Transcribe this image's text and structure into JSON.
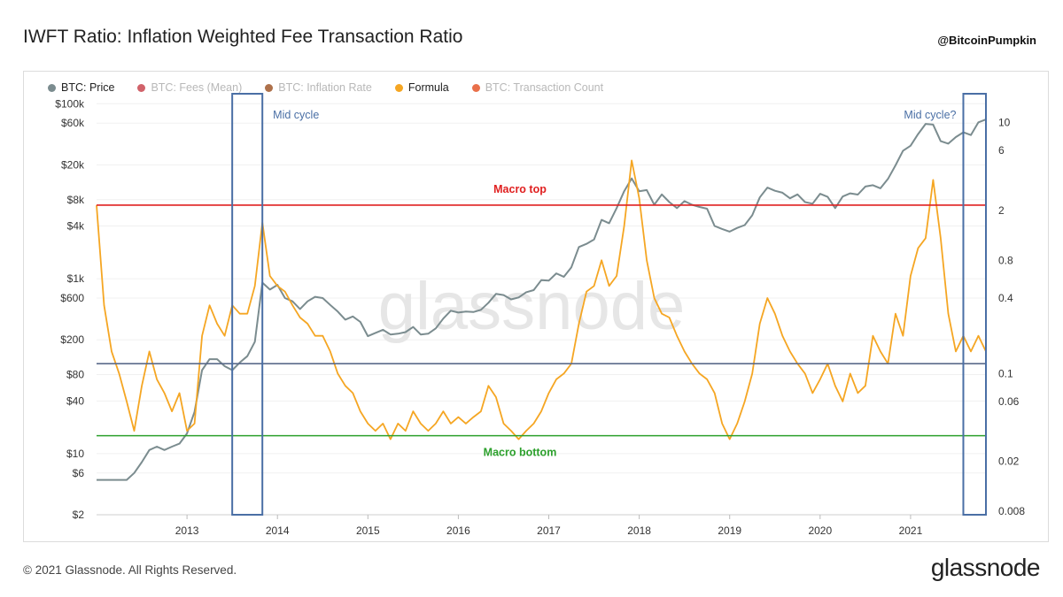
{
  "header": {
    "title": "IWFT Ratio: Inflation Weighted Fee Transaction Ratio",
    "handle": "@BitcoinPumpkin"
  },
  "legend": [
    {
      "label": "BTC: Price",
      "color": "#7b8c8f",
      "active": true
    },
    {
      "label": "BTC: Fees (Mean)",
      "color": "#c94650",
      "active": false
    },
    {
      "label": "BTC: Inflation Rate",
      "color": "#a0582b",
      "active": false
    },
    {
      "label": "Formula",
      "color": "#f5a623",
      "active": true
    },
    {
      "label": "BTC: Transaction Count",
      "color": "#e5572a",
      "active": false
    }
  ],
  "watermark": "glassnode",
  "footer": {
    "copyright": "© 2021 Glassnode. All Rights Reserved.",
    "brand": "glassnode"
  },
  "chart_data": {
    "type": "line",
    "x_range": [
      "2012-01",
      "2021-11"
    ],
    "x_ticks": [
      "2013",
      "2014",
      "2015",
      "2016",
      "2017",
      "2018",
      "2019",
      "2020",
      "2021"
    ],
    "left_axis": {
      "scale": "log",
      "range": [
        2,
        130000
      ],
      "tick_values": [
        100000,
        60000,
        20000,
        8000,
        4000,
        1000,
        600,
        200,
        80,
        40,
        10,
        6,
        2
      ],
      "tick_labels": [
        "$100k",
        "$60k",
        "$20k",
        "$8k",
        "$4k",
        "$1k",
        "$600",
        "$200",
        "$80",
        "$40",
        "$10",
        "$6",
        "$2"
      ]
    },
    "right_axis": {
      "scale": "log",
      "range": [
        0.0075,
        17
      ],
      "tick_values": [
        10,
        6,
        2,
        0.8,
        0.4,
        0.1,
        0.06,
        0.02,
        0.008
      ],
      "tick_labels": [
        "10",
        "6",
        "2",
        "0.8",
        "0.4",
        "0.1",
        "0.06",
        "0.02",
        "0.008"
      ]
    },
    "series": [
      {
        "name": "BTC: Price",
        "axis": "left",
        "color": "#7b8c8f",
        "points": [
          [
            "2012-01",
            5
          ],
          [
            "2012-02",
            5
          ],
          [
            "2012-03",
            5
          ],
          [
            "2012-04",
            5
          ],
          [
            "2012-05",
            5
          ],
          [
            "2012-06",
            6
          ],
          [
            "2012-07",
            8
          ],
          [
            "2012-08",
            11
          ],
          [
            "2012-09",
            12
          ],
          [
            "2012-10",
            11
          ],
          [
            "2012-11",
            12
          ],
          [
            "2012-12",
            13
          ],
          [
            "2013-01",
            17
          ],
          [
            "2013-02",
            30
          ],
          [
            "2013-03",
            90
          ],
          [
            "2013-04",
            120
          ],
          [
            "2013-05",
            120
          ],
          [
            "2013-06",
            100
          ],
          [
            "2013-07",
            90
          ],
          [
            "2013-08",
            110
          ],
          [
            "2013-09",
            130
          ],
          [
            "2013-10",
            190
          ],
          [
            "2013-11",
            900
          ],
          [
            "2013-12",
            750
          ],
          [
            "2014-01",
            850
          ],
          [
            "2014-02",
            600
          ],
          [
            "2014-03",
            550
          ],
          [
            "2014-04",
            450
          ],
          [
            "2014-05",
            550
          ],
          [
            "2014-06",
            620
          ],
          [
            "2014-07",
            600
          ],
          [
            "2014-08",
            500
          ],
          [
            "2014-09",
            420
          ],
          [
            "2014-10",
            340
          ],
          [
            "2014-11",
            370
          ],
          [
            "2014-12",
            320
          ],
          [
            "2015-01",
            220
          ],
          [
            "2015-02",
            240
          ],
          [
            "2015-03",
            260
          ],
          [
            "2015-04",
            230
          ],
          [
            "2015-05",
            235
          ],
          [
            "2015-06",
            245
          ],
          [
            "2015-07",
            280
          ],
          [
            "2015-08",
            230
          ],
          [
            "2015-09",
            235
          ],
          [
            "2015-10",
            270
          ],
          [
            "2015-11",
            350
          ],
          [
            "2015-12",
            430
          ],
          [
            "2016-01",
            410
          ],
          [
            "2016-02",
            420
          ],
          [
            "2016-03",
            415
          ],
          [
            "2016-04",
            440
          ],
          [
            "2016-05",
            530
          ],
          [
            "2016-06",
            670
          ],
          [
            "2016-07",
            650
          ],
          [
            "2016-08",
            580
          ],
          [
            "2016-09",
            610
          ],
          [
            "2016-10",
            700
          ],
          [
            "2016-11",
            740
          ],
          [
            "2016-12",
            960
          ],
          [
            "2017-01",
            950
          ],
          [
            "2017-02",
            1150
          ],
          [
            "2017-03",
            1050
          ],
          [
            "2017-04",
            1350
          ],
          [
            "2017-05",
            2300
          ],
          [
            "2017-06",
            2500
          ],
          [
            "2017-07",
            2800
          ],
          [
            "2017-08",
            4700
          ],
          [
            "2017-09",
            4300
          ],
          [
            "2017-10",
            6400
          ],
          [
            "2017-11",
            10000
          ],
          [
            "2017-12",
            14000
          ],
          [
            "2018-01",
            10000
          ],
          [
            "2018-02",
            10300
          ],
          [
            "2018-03",
            7000
          ],
          [
            "2018-04",
            9200
          ],
          [
            "2018-05",
            7500
          ],
          [
            "2018-06",
            6400
          ],
          [
            "2018-07",
            7700
          ],
          [
            "2018-08",
            7000
          ],
          [
            "2018-09",
            6600
          ],
          [
            "2018-10",
            6300
          ],
          [
            "2018-11",
            4000
          ],
          [
            "2018-12",
            3700
          ],
          [
            "2019-01",
            3450
          ],
          [
            "2019-02",
            3800
          ],
          [
            "2019-03",
            4100
          ],
          [
            "2019-04",
            5300
          ],
          [
            "2019-05",
            8500
          ],
          [
            "2019-06",
            11000
          ],
          [
            "2019-07",
            10100
          ],
          [
            "2019-08",
            9600
          ],
          [
            "2019-09",
            8300
          ],
          [
            "2019-10",
            9200
          ],
          [
            "2019-11",
            7500
          ],
          [
            "2019-12",
            7200
          ],
          [
            "2020-01",
            9350
          ],
          [
            "2020-02",
            8600
          ],
          [
            "2020-03",
            6400
          ],
          [
            "2020-04",
            8700
          ],
          [
            "2020-05",
            9450
          ],
          [
            "2020-06",
            9150
          ],
          [
            "2020-07",
            11300
          ],
          [
            "2020-08",
            11700
          ],
          [
            "2020-09",
            10800
          ],
          [
            "2020-10",
            13800
          ],
          [
            "2020-11",
            19700
          ],
          [
            "2020-12",
            29000
          ],
          [
            "2021-01",
            33100
          ],
          [
            "2021-02",
            45000
          ],
          [
            "2021-03",
            58800
          ],
          [
            "2021-04",
            57700
          ],
          [
            "2021-05",
            37300
          ],
          [
            "2021-06",
            35000
          ],
          [
            "2021-07",
            41500
          ],
          [
            "2021-08",
            47100
          ],
          [
            "2021-09",
            43800
          ],
          [
            "2021-10",
            61300
          ],
          [
            "2021-11",
            66000
          ]
        ]
      },
      {
        "name": "Formula",
        "axis": "right",
        "color": "#f5a623",
        "points": [
          [
            "2012-01",
            2.2
          ],
          [
            "2012-02",
            0.35
          ],
          [
            "2012-03",
            0.15
          ],
          [
            "2012-04",
            0.1
          ],
          [
            "2012-05",
            0.06
          ],
          [
            "2012-06",
            0.035
          ],
          [
            "2012-07",
            0.08
          ],
          [
            "2012-08",
            0.15
          ],
          [
            "2012-09",
            0.09
          ],
          [
            "2012-10",
            0.07
          ],
          [
            "2012-11",
            0.05
          ],
          [
            "2012-12",
            0.07
          ],
          [
            "2013-01",
            0.035
          ],
          [
            "2013-02",
            0.04
          ],
          [
            "2013-03",
            0.2
          ],
          [
            "2013-04",
            0.35
          ],
          [
            "2013-05",
            0.25
          ],
          [
            "2013-06",
            0.2
          ],
          [
            "2013-07",
            0.35
          ],
          [
            "2013-08",
            0.3
          ],
          [
            "2013-09",
            0.3
          ],
          [
            "2013-10",
            0.5
          ],
          [
            "2013-11",
            1.6
          ],
          [
            "2013-12",
            0.6
          ],
          [
            "2014-01",
            0.5
          ],
          [
            "2014-02",
            0.45
          ],
          [
            "2014-03",
            0.35
          ],
          [
            "2014-04",
            0.28
          ],
          [
            "2014-05",
            0.25
          ],
          [
            "2014-06",
            0.2
          ],
          [
            "2014-07",
            0.2
          ],
          [
            "2014-08",
            0.15
          ],
          [
            "2014-09",
            0.1
          ],
          [
            "2014-10",
            0.08
          ],
          [
            "2014-11",
            0.07
          ],
          [
            "2014-12",
            0.05
          ],
          [
            "2015-01",
            0.04
          ],
          [
            "2015-02",
            0.035
          ],
          [
            "2015-03",
            0.04
          ],
          [
            "2015-04",
            0.03
          ],
          [
            "2015-05",
            0.04
          ],
          [
            "2015-06",
            0.035
          ],
          [
            "2015-07",
            0.05
          ],
          [
            "2015-08",
            0.04
          ],
          [
            "2015-09",
            0.035
          ],
          [
            "2015-10",
            0.04
          ],
          [
            "2015-11",
            0.05
          ],
          [
            "2015-12",
            0.04
          ],
          [
            "2016-01",
            0.045
          ],
          [
            "2016-02",
            0.04
          ],
          [
            "2016-03",
            0.045
          ],
          [
            "2016-04",
            0.05
          ],
          [
            "2016-05",
            0.08
          ],
          [
            "2016-06",
            0.065
          ],
          [
            "2016-07",
            0.04
          ],
          [
            "2016-08",
            0.035
          ],
          [
            "2016-09",
            0.03
          ],
          [
            "2016-10",
            0.035
          ],
          [
            "2016-11",
            0.04
          ],
          [
            "2016-12",
            0.05
          ],
          [
            "2017-01",
            0.07
          ],
          [
            "2017-02",
            0.09
          ],
          [
            "2017-03",
            0.1
          ],
          [
            "2017-04",
            0.12
          ],
          [
            "2017-05",
            0.25
          ],
          [
            "2017-06",
            0.45
          ],
          [
            "2017-07",
            0.5
          ],
          [
            "2017-08",
            0.8
          ],
          [
            "2017-09",
            0.5
          ],
          [
            "2017-10",
            0.6
          ],
          [
            "2017-11",
            1.5
          ],
          [
            "2017-12",
            5.0
          ],
          [
            "2018-01",
            2.5
          ],
          [
            "2018-02",
            0.8
          ],
          [
            "2018-03",
            0.4
          ],
          [
            "2018-04",
            0.3
          ],
          [
            "2018-05",
            0.28
          ],
          [
            "2018-06",
            0.2
          ],
          [
            "2018-07",
            0.15
          ],
          [
            "2018-08",
            0.12
          ],
          [
            "2018-09",
            0.1
          ],
          [
            "2018-10",
            0.09
          ],
          [
            "2018-11",
            0.07
          ],
          [
            "2018-12",
            0.04
          ],
          [
            "2019-01",
            0.03
          ],
          [
            "2019-02",
            0.04
          ],
          [
            "2019-03",
            0.06
          ],
          [
            "2019-04",
            0.1
          ],
          [
            "2019-05",
            0.25
          ],
          [
            "2019-06",
            0.4
          ],
          [
            "2019-07",
            0.3
          ],
          [
            "2019-08",
            0.2
          ],
          [
            "2019-09",
            0.15
          ],
          [
            "2019-10",
            0.12
          ],
          [
            "2019-11",
            0.1
          ],
          [
            "2019-12",
            0.07
          ],
          [
            "2020-01",
            0.09
          ],
          [
            "2020-02",
            0.12
          ],
          [
            "2020-03",
            0.08
          ],
          [
            "2020-04",
            0.06
          ],
          [
            "2020-05",
            0.1
          ],
          [
            "2020-06",
            0.07
          ],
          [
            "2020-07",
            0.08
          ],
          [
            "2020-08",
            0.2
          ],
          [
            "2020-09",
            0.15
          ],
          [
            "2020-10",
            0.12
          ],
          [
            "2020-11",
            0.3
          ],
          [
            "2020-12",
            0.2
          ],
          [
            "2021-01",
            0.6
          ],
          [
            "2021-02",
            1.0
          ],
          [
            "2021-03",
            1.2
          ],
          [
            "2021-04",
            3.5
          ],
          [
            "2021-05",
            1.2
          ],
          [
            "2021-06",
            0.3
          ],
          [
            "2021-07",
            0.15
          ],
          [
            "2021-08",
            0.2
          ],
          [
            "2021-09",
            0.15
          ],
          [
            "2021-10",
            0.2
          ],
          [
            "2021-11",
            0.15
          ]
        ]
      }
    ],
    "annotations": [
      {
        "text": "Macro top",
        "type": "hline",
        "axis": "right",
        "value": 2.2,
        "color": "#e02020"
      },
      {
        "text": "Macro bottom",
        "type": "hline",
        "axis": "right",
        "value": 0.032,
        "color": "#2ca02c"
      },
      {
        "text": "",
        "type": "hline",
        "axis": "right",
        "value": 0.12,
        "color": "#5a6a8a"
      },
      {
        "text": "Mid cycle",
        "type": "box",
        "x_range": [
          "2013-07",
          "2013-11"
        ],
        "color": "#4a6fa5"
      },
      {
        "text": "Mid cycle?",
        "type": "box",
        "x_range": [
          "2021-08",
          "2021-11"
        ],
        "color": "#4a6fa5"
      }
    ]
  }
}
